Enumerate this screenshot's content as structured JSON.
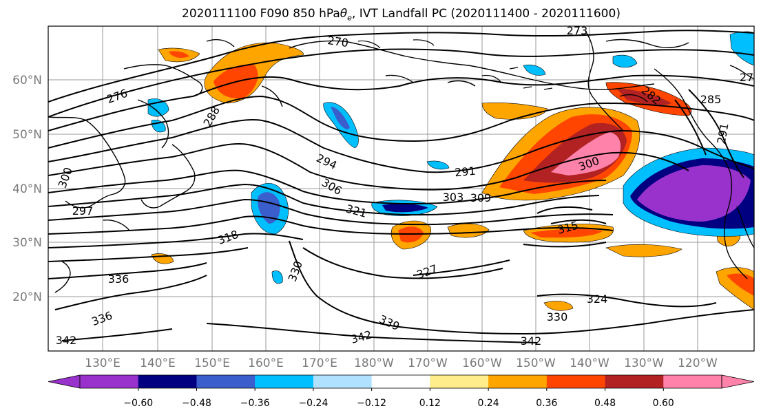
{
  "title": {
    "prefix": "2020111100 F090 850 hPa ",
    "theta_symbol": "θ",
    "theta_sub": "e",
    "suffix": ", IVT Landfall PC (2020111400 - 2020111600)"
  },
  "map": {
    "lat_labels": [
      "60°N",
      "50°N",
      "40°N",
      "30°N",
      "20°N"
    ],
    "lon_labels": [
      "130°E",
      "140°E",
      "150°E",
      "160°E",
      "170°E",
      "180°W",
      "170°W",
      "160°W",
      "150°W",
      "140°W",
      "130°W",
      "120°W"
    ],
    "grid": true,
    "contour_labels": [
      "273",
      "270",
      "276",
      "288",
      "282",
      "285",
      "291",
      "294",
      "291",
      "300",
      "303",
      "309",
      "306",
      "321",
      "297",
      "318",
      "315",
      "327",
      "330",
      "336",
      "336",
      "324",
      "330",
      "339",
      "342",
      "342",
      "342",
      "300",
      "27"
    ],
    "contour_color": "#000000",
    "coastline_color": "#000000"
  },
  "colorbar": {
    "colors": [
      "#9932cc",
      "#000080",
      "#3a5fcd",
      "#00bfff",
      "#b0e2ff",
      "#ffffff",
      "#ffec8b",
      "#ffa500",
      "#ff4500",
      "#b22222",
      "#ff82ab"
    ],
    "tick_labels": [
      "−0.60",
      "−0.48",
      "−0.36",
      "−0.24",
      "−0.12",
      "0.12",
      "0.24",
      "0.36",
      "0.48",
      "0.60"
    ],
    "extend": "both"
  }
}
